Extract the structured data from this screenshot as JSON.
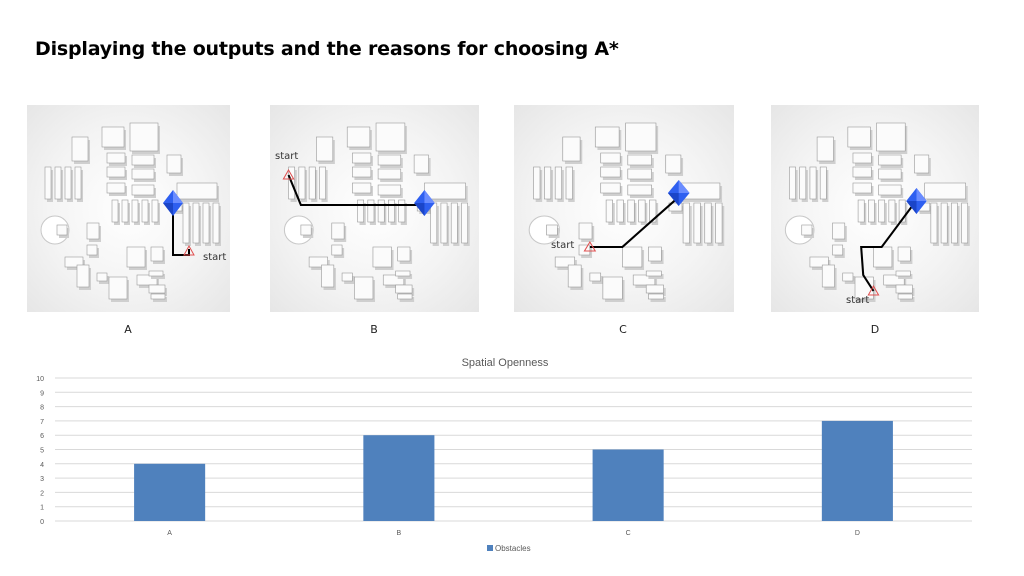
{
  "page": {
    "title": "Displaying the outputs and the reasons for choosing A*"
  },
  "panels": [
    {
      "label": "A",
      "start_label": "start"
    },
    {
      "label": "B",
      "start_label": "start"
    },
    {
      "label": "C",
      "start_label": "start"
    },
    {
      "label": "D",
      "start_label": "start"
    }
  ],
  "colors": {
    "bar": "#4f81bd",
    "path": "#000000",
    "goal": "#2e5ff0",
    "start_marker": "#e05050",
    "grid": "#d9d9d9"
  },
  "chart_data": {
    "type": "bar",
    "title": "Spatial Openness",
    "categories": [
      "A",
      "B",
      "C",
      "D"
    ],
    "series": [
      {
        "name": "Obstacles",
        "values": [
          4,
          6,
          5,
          7
        ]
      }
    ],
    "ylim": [
      0,
      10
    ],
    "yticks": [
      "0",
      "1",
      "2",
      "3",
      "4",
      "5",
      "6",
      "7",
      "8",
      "9",
      "10"
    ],
    "grid": true,
    "legend": "bottom"
  }
}
